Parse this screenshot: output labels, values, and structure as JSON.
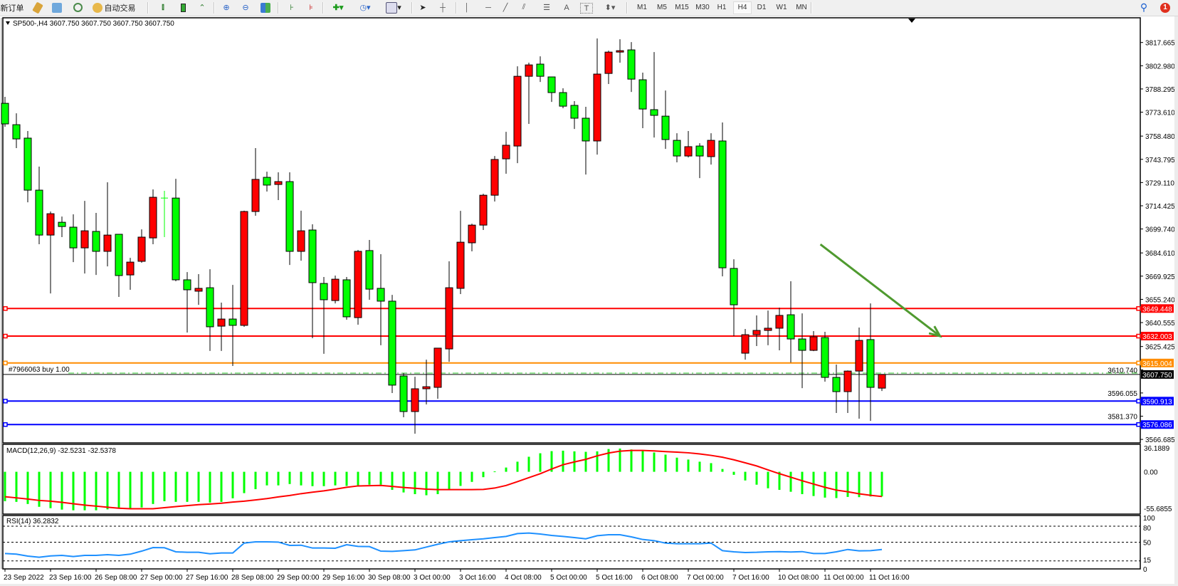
{
  "toolbar": {
    "new_order": "新订单",
    "auto_trading": "自动交易",
    "icons": [
      "market-watch-icon",
      "data-window-icon",
      "navigator-icon",
      "auto-trading-icon",
      "bar-chart-icon",
      "candlestick-icon",
      "line-chart-icon",
      "zoom-in-icon",
      "zoom-out-icon",
      "tile-windows-icon",
      "auto-scroll-icon",
      "chart-shift-icon",
      "indicators-icon",
      "periods-icon",
      "templates-icon",
      "cursor-icon",
      "crosshair-icon",
      "vertical-line-icon",
      "horizontal-line-icon",
      "trendline-icon",
      "channel-icon",
      "fibonacci-icon",
      "text-icon",
      "text-label-icon",
      "arrows-icon"
    ],
    "text_tool": "A",
    "label_tool": "T",
    "timeframes": [
      "M1",
      "M5",
      "M15",
      "M30",
      "H1",
      "H4",
      "D1",
      "W1",
      "MN"
    ],
    "active_timeframe": "H4",
    "notification_count": "1"
  },
  "chart": {
    "header": "SP500-,H4  3607.750 3607.750 3607.750 3607.750",
    "order_label": "#7966063 buy 1.00",
    "bid_price": "3607.750",
    "colors": {
      "bull": "#ff0000",
      "bear": "#00ff00",
      "bid": "#000000",
      "order": "#32cd32",
      "arrow": "#4f9a2f"
    }
  },
  "chart_data": {
    "type": "candlestick",
    "symbol": "SP500-",
    "timeframe": "H4",
    "ylim": [
      3566.685,
      3817.665
    ],
    "price_ticks": [
      "3817.665",
      "3802.980",
      "3788.295",
      "3773.610",
      "3758.480",
      "3743.795",
      "3729.110",
      "3714.425",
      "3699.740",
      "3684.610",
      "3669.925",
      "3655.240",
      "3640.555",
      "3625.425",
      "3610.740",
      "3596.055",
      "3581.370",
      "3566.685"
    ],
    "time_labels": [
      "23 Sep 2022",
      "23 Sep 16:00",
      "26 Sep 08:00",
      "27 Sep 00:00",
      "27 Sep 16:00",
      "28 Sep 08:00",
      "29 Sep 00:00",
      "29 Sep 16:00",
      "30 Sep 08:00",
      "3 Oct 00:00",
      "3 Oct 16:00",
      "4 Oct 08:00",
      "5 Oct 00:00",
      "5 Oct 16:00",
      "6 Oct 08:00",
      "7 Oct 00:00",
      "7 Oct 16:00",
      "10 Oct 08:00",
      "11 Oct 00:00",
      "11 Oct 16:00"
    ],
    "ohlc": [
      [
        3779.2,
        3783.3,
        3764.4,
        3766.2
      ],
      [
        3765.7,
        3772.9,
        3750.9,
        3756.7
      ],
      [
        3757.2,
        3761.7,
        3716.6,
        3724.3
      ],
      [
        3724.3,
        3739.2,
        3690.1,
        3695.9
      ],
      [
        3695.9,
        3710.8,
        3659.0,
        3709.4
      ],
      [
        3704.0,
        3707.6,
        3694.6,
        3701.3
      ],
      [
        3700.9,
        3709.0,
        3678.8,
        3687.8
      ],
      [
        3687.8,
        3717.5,
        3671.6,
        3698.6
      ],
      [
        3698.2,
        3709.9,
        3670.7,
        3685.6
      ],
      [
        3685.6,
        3729.3,
        3676.1,
        3695.9
      ],
      [
        3696.4,
        3696.4,
        3656.8,
        3670.3
      ],
      [
        3670.7,
        3681.5,
        3661.3,
        3678.8
      ],
      [
        3679.3,
        3699.5,
        3678.4,
        3694.6
      ],
      [
        3694.1,
        3724.8,
        3690.1,
        3719.8
      ],
      [
        3719.3,
        3723.9,
        3694.6,
        3719.3
      ],
      [
        3719.3,
        3731.5,
        3666.7,
        3667.6
      ],
      [
        3667.6,
        3672.5,
        3634.3,
        3661.3
      ],
      [
        3660.4,
        3671.2,
        3651.8,
        3662.2
      ],
      [
        3662.6,
        3674.3,
        3622.6,
        3637.9
      ],
      [
        3638.3,
        3653.2,
        3622.6,
        3642.8
      ],
      [
        3642.8,
        3664.4,
        3613.1,
        3638.8
      ],
      [
        3638.8,
        3711.3,
        3637.9,
        3710.8
      ],
      [
        3710.8,
        3750.9,
        3708.1,
        3731.1
      ],
      [
        3732.4,
        3736.0,
        3723.4,
        3727.5
      ],
      [
        3727.9,
        3735.6,
        3718.0,
        3729.7
      ],
      [
        3729.7,
        3735.6,
        3677.0,
        3685.6
      ],
      [
        3685.6,
        3711.3,
        3679.7,
        3698.6
      ],
      [
        3699.1,
        3702.7,
        3630.7,
        3665.8
      ],
      [
        3665.3,
        3669.4,
        3620.8,
        3655.0
      ],
      [
        3654.5,
        3670.3,
        3652.7,
        3668.0
      ],
      [
        3667.6,
        3669.4,
        3642.4,
        3644.2
      ],
      [
        3643.7,
        3686.5,
        3639.2,
        3685.6
      ],
      [
        3686.1,
        3692.8,
        3655.0,
        3661.7
      ],
      [
        3662.2,
        3683.8,
        3626.2,
        3654.1
      ],
      [
        3654.1,
        3658.1,
        3596.0,
        3601.0
      ],
      [
        3606.8,
        3608.6,
        3580.7,
        3584.3
      ],
      [
        3584.3,
        3606.3,
        3570.3,
        3598.7
      ],
      [
        3598.7,
        3617.1,
        3588.8,
        3600.0
      ],
      [
        3599.6,
        3624.4,
        3592.4,
        3624.4
      ],
      [
        3623.9,
        3679.3,
        3615.8,
        3662.6
      ],
      [
        3662.2,
        3711.2,
        3658.6,
        3691.4
      ],
      [
        3691.0,
        3703.1,
        3685.6,
        3702.2
      ],
      [
        3702.2,
        3722.0,
        3699.1,
        3721.1
      ],
      [
        3721.1,
        3745.9,
        3717.1,
        3743.7
      ],
      [
        3744.1,
        3761.2,
        3734.7,
        3752.7
      ],
      [
        3752.2,
        3802.6,
        3741.4,
        3796.3
      ],
      [
        3796.3,
        3804.9,
        3766.2,
        3803.5
      ],
      [
        3804.0,
        3808.9,
        3792.7,
        3796.3
      ],
      [
        3795.9,
        3795.9,
        3780.1,
        3786.0
      ],
      [
        3786.0,
        3788.7,
        3776.1,
        3777.4
      ],
      [
        3777.9,
        3780.6,
        3763.0,
        3769.8
      ],
      [
        3769.8,
        3777.0,
        3734.2,
        3755.4
      ],
      [
        3755.4,
        3820.2,
        3746.8,
        3797.7
      ],
      [
        3798.1,
        3812.5,
        3791.4,
        3811.6
      ],
      [
        3811.6,
        3819.7,
        3804.9,
        3812.5
      ],
      [
        3813.0,
        3817.9,
        3786.4,
        3794.5
      ],
      [
        3794.1,
        3798.6,
        3763.5,
        3775.6
      ],
      [
        3775.2,
        3811.6,
        3757.6,
        3771.6
      ],
      [
        3771.1,
        3787.3,
        3750.4,
        3756.3
      ],
      [
        3755.8,
        3760.3,
        3741.9,
        3745.9
      ],
      [
        3745.9,
        3761.7,
        3745.0,
        3751.8
      ],
      [
        3752.2,
        3754.0,
        3731.9,
        3745.9
      ],
      [
        3745.5,
        3760.3,
        3740.5,
        3755.8
      ],
      [
        3755.4,
        3767.1,
        3669.8,
        3675.2
      ],
      [
        3674.8,
        3680.6,
        3632.0,
        3651.8
      ],
      [
        3621.2,
        3636.5,
        3617.1,
        3632.9
      ],
      [
        3632.9,
        3645.1,
        3625.7,
        3635.6
      ],
      [
        3635.6,
        3648.2,
        3626.2,
        3637.0
      ],
      [
        3637.0,
        3650.0,
        3623.0,
        3645.1
      ],
      [
        3645.5,
        3666.7,
        3615.3,
        3630.2
      ],
      [
        3630.2,
        3646.4,
        3599.1,
        3623.0
      ],
      [
        3623.0,
        3635.2,
        3622.5,
        3631.6
      ],
      [
        3631.1,
        3634.7,
        3603.2,
        3605.9
      ],
      [
        3605.9,
        3614.0,
        3583.4,
        3596.9
      ],
      [
        3596.9,
        3610.3,
        3583.4,
        3609.9
      ],
      [
        3609.9,
        3637.4,
        3579.8,
        3629.3
      ],
      [
        3629.8,
        3652.7,
        3578.4,
        3599.6
      ],
      [
        3599.1,
        3607.75,
        3597.3,
        3607.75
      ]
    ],
    "levels": [
      {
        "price": 3649.448,
        "label": "3649.448",
        "color": "#ff0000"
      },
      {
        "price": 3632.003,
        "label": "3632.003",
        "color": "#ff0000"
      },
      {
        "price": 3615.004,
        "label": "3615.004",
        "color": "#ff8c00"
      },
      {
        "price": 3590.913,
        "label": "3590.913",
        "color": "#0000ff"
      },
      {
        "price": 3576.086,
        "label": "3576.086",
        "color": "#0000ff"
      }
    ],
    "order_price": 3608.6,
    "bid": 3607.75,
    "trend_arrow": {
      "from": {
        "bar": 71.6,
        "price": 3690
      },
      "to": {
        "bar": 82.1,
        "price": 3632
      }
    },
    "macd": {
      "label": "MACD(12,26,9) -32.5231 -32.5378",
      "range": [
        -55.6855,
        36.1889
      ],
      "axis_labels": [
        "36.1889",
        "0.00",
        "-55.6855"
      ],
      "main": [
        -38.7,
        -39.6,
        -42.4,
        -46.1,
        -47.9,
        -49.8,
        -50.7,
        -50.7,
        -50.7,
        -49.5,
        -48.6,
        -47.9,
        -47.0,
        -42.4,
        -38.7,
        -39.6,
        -39.6,
        -39.6,
        -40.5,
        -39.6,
        -34.9,
        -28.1,
        -22.9,
        -17.9,
        -17.9,
        -16.1,
        -17.9,
        -18.9,
        -18.9,
        -17.9,
        -18.6,
        -17.9,
        -17.0,
        -17.0,
        -23.8,
        -27.2,
        -29.4,
        -30.9,
        -29.4,
        -23.5,
        -18.6,
        -13.3,
        -7.1,
        0.5,
        5.6,
        13.3,
        19.8,
        24.4,
        27.2,
        27.8,
        26.9,
        26.3,
        26.9,
        30.0,
        30.6,
        29.4,
        27.8,
        25.4,
        22.6,
        18.6,
        16.1,
        13.3,
        11.4,
        3.7,
        -4.0,
        -11.4,
        -17.0,
        -21.7,
        -23.8,
        -26.3,
        -29.4,
        -31.9,
        -34.0,
        -34.6,
        -33.1,
        -33.4,
        -32.5,
        -32.5231
      ],
      "signal": [
        -32.8,
        -34.3,
        -35.9,
        -37.7,
        -38.7,
        -40.2,
        -42.1,
        -43.9,
        -45.2,
        -46.7,
        -47.9,
        -48.6,
        -48.6,
        -48.6,
        -47.3,
        -45.8,
        -44.5,
        -43.3,
        -42.4,
        -41.4,
        -39.9,
        -38.7,
        -37.1,
        -35.3,
        -33.1,
        -31.2,
        -28.8,
        -26.9,
        -25.1,
        -22.9,
        -20.4,
        -18.6,
        -18.3,
        -17.9,
        -19.2,
        -20.7,
        -21.7,
        -22.9,
        -23.5,
        -23.5,
        -23.5,
        -23.5,
        -23.2,
        -21.4,
        -18.0,
        -13.0,
        -7.7,
        -2.5,
        3.7,
        9.3,
        13.0,
        16.4,
        21.0,
        24.7,
        27.2,
        28.1,
        28.1,
        27.5,
        26.6,
        25.9,
        25.0,
        23.5,
        21.6,
        19.2,
        15.8,
        11.8,
        7.7,
        2.5,
        -2.5,
        -7.1,
        -11.8,
        -16.1,
        -20.4,
        -24.1,
        -26.3,
        -29.0,
        -31.0,
        -32.5378
      ],
      "colors": {
        "main": "#00ff00",
        "signal": "#ff0000"
      }
    },
    "rsi": {
      "label": "RSI(14) 36.2832",
      "range": [
        0,
        100
      ],
      "levels": [
        80,
        50,
        15
      ],
      "axis_labels": [
        "100",
        "80",
        "50",
        "15",
        "0"
      ],
      "values": [
        28.9,
        27.6,
        24.0,
        21.8,
        24.4,
        25.3,
        23.1,
        25.3,
        25.3,
        26.7,
        25.3,
        27.6,
        33.3,
        40.0,
        39.6,
        32.0,
        31.1,
        31.1,
        28.4,
        29.8,
        29.8,
        48.4,
        50.7,
        50.7,
        50.2,
        44.0,
        44.4,
        39.1,
        39.1,
        38.7,
        45.3,
        42.2,
        41.8,
        33.3,
        32.9,
        34.2,
        35.6,
        40.9,
        46.2,
        50.7,
        52.9,
        54.7,
        56.4,
        58.7,
        60.9,
        66.2,
        67.1,
        65.3,
        62.7,
        60.9,
        58.7,
        56.4,
        62.2,
        64.0,
        64.0,
        60.0,
        55.1,
        52.9,
        48.4,
        47.1,
        47.1,
        47.1,
        48.4,
        34.2,
        32.0,
        30.7,
        31.1,
        32.0,
        32.4,
        31.6,
        32.4,
        28.9,
        28.9,
        32.0,
        36.4,
        33.8,
        34.2,
        36.2832
      ],
      "color": "#1e90ff"
    }
  }
}
